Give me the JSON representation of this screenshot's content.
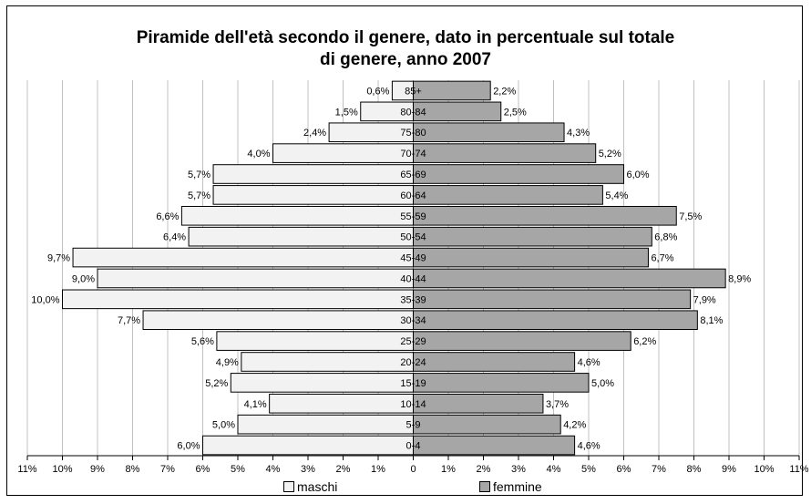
{
  "chart_data": {
    "type": "bar",
    "orientation": "horizontal",
    "title": "Piramide dell'età secondo il genere, dato in percentuale sul totale di genere, anno 2007",
    "title_lines": [
      "Piramide dell'età secondo il genere, dato in percentuale sul totale",
      "di genere, anno 2007"
    ],
    "categories": [
      "85+",
      "80-84",
      "75-80",
      "70-74",
      "65-69",
      "60-64",
      "55-59",
      "50-54",
      "45-49",
      "40-44",
      "35-39",
      "30-34",
      "25-29",
      "20-24",
      "15-19",
      "10-14",
      "5-9",
      "0-4"
    ],
    "series": [
      {
        "name": "maschi",
        "color": "#f2f2f2",
        "values": [
          0.6,
          1.5,
          2.4,
          4.0,
          5.7,
          5.7,
          6.6,
          6.4,
          9.7,
          9.0,
          10.0,
          7.7,
          5.6,
          4.9,
          5.2,
          4.1,
          5.0,
          6.0
        ],
        "labels": [
          "0,6%",
          "1,5%",
          "2,4%",
          "4,0%",
          "5,7%",
          "5,7%",
          "6,6%",
          "6,4%",
          "9,7%",
          "9,0%",
          "10,0%",
          "7,7%",
          "5,6%",
          "4,9%",
          "5,2%",
          "4,1%",
          "5,0%",
          "6,0%"
        ]
      },
      {
        "name": "femmine",
        "color": "#a6a6a6",
        "values": [
          2.2,
          2.5,
          4.3,
          5.2,
          6.0,
          5.4,
          7.5,
          6.8,
          6.7,
          8.9,
          7.9,
          8.1,
          6.2,
          4.6,
          5.0,
          3.7,
          4.2,
          4.6
        ],
        "labels": [
          "2,2%",
          "2,5%",
          "4,3%",
          "5,2%",
          "6,0%",
          "5,4%",
          "7,5%",
          "6,8%",
          "6,7%",
          "8,9%",
          "7,9%",
          "8,1%",
          "6,2%",
          "4,6%",
          "5,0%",
          "3,7%",
          "4,2%",
          "4,6%"
        ]
      }
    ],
    "xlim": [
      -11,
      11
    ],
    "x_ticks": [
      "11%",
      "10%",
      "9%",
      "8%",
      "7%",
      "6%",
      "5%",
      "4%",
      "3%",
      "2%",
      "1%",
      "0",
      "1%",
      "2%",
      "3%",
      "4%",
      "5%",
      "6%",
      "7%",
      "8%",
      "9%",
      "10%",
      "11%"
    ],
    "grid": true,
    "legend_position": "bottom"
  }
}
